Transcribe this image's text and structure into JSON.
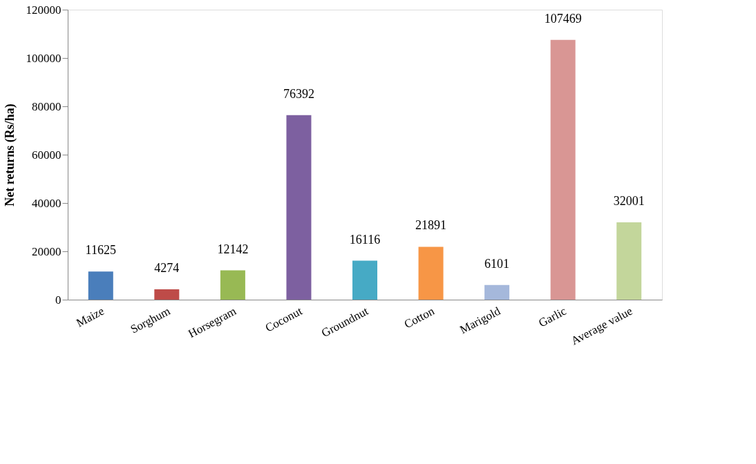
{
  "chart_data": {
    "type": "bar",
    "ylabel": "Net returns (Rs/ha)",
    "categories": [
      "Maize",
      "Sorghum",
      "Horsegram",
      "Coconut",
      "Groundnut",
      "Cotton",
      "Marigold",
      "Garlic",
      "Average value"
    ],
    "values": [
      11625,
      4274,
      12142,
      76392,
      16116,
      21891,
      6101,
      107469,
      32001
    ],
    "colors": [
      "#4a7ebb",
      "#be4b48",
      "#98b954",
      "#7d60a0",
      "#46aac5",
      "#f79646",
      "#a5b8db",
      "#d99694",
      "#c3d69b"
    ],
    "ylim": [
      0,
      120000
    ],
    "yticks": [
      0,
      20000,
      40000,
      60000,
      80000,
      100000,
      120000
    ],
    "grid": false,
    "data_labels": true
  }
}
